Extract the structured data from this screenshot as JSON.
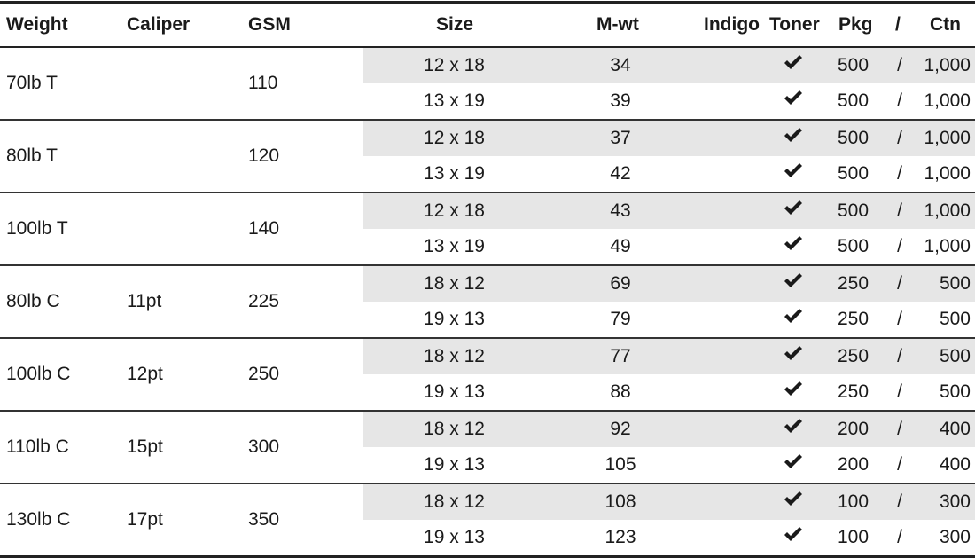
{
  "headers": {
    "weight": "Weight",
    "caliper": "Caliper",
    "gsm": "GSM",
    "size": "Size",
    "mwt": "M-wt",
    "indigo": "Indigo",
    "toner": "Toner",
    "pkg": "Pkg",
    "slash": "/",
    "ctn": "Ctn"
  },
  "groups": [
    {
      "weight": "70lb T",
      "caliper": "",
      "gsm": "110",
      "rows": [
        {
          "size": "12 x 18",
          "mwt": "34",
          "toner": true,
          "pkg": "500",
          "slash": "/",
          "ctn": "1,000"
        },
        {
          "size": "13 x 19",
          "mwt": "39",
          "toner": true,
          "pkg": "500",
          "slash": "/",
          "ctn": "1,000"
        }
      ]
    },
    {
      "weight": "80lb T",
      "caliper": "",
      "gsm": "120",
      "rows": [
        {
          "size": "12 x 18",
          "mwt": "37",
          "toner": true,
          "pkg": "500",
          "slash": "/",
          "ctn": "1,000"
        },
        {
          "size": "13 x 19",
          "mwt": "42",
          "toner": true,
          "pkg": "500",
          "slash": "/",
          "ctn": "1,000"
        }
      ]
    },
    {
      "weight": "100lb T",
      "caliper": "",
      "gsm": "140",
      "rows": [
        {
          "size": "12 x 18",
          "mwt": "43",
          "toner": true,
          "pkg": "500",
          "slash": "/",
          "ctn": "1,000"
        },
        {
          "size": "13 x 19",
          "mwt": "49",
          "toner": true,
          "pkg": "500",
          "slash": "/",
          "ctn": "1,000"
        }
      ]
    },
    {
      "weight": "80lb C",
      "caliper": "11pt",
      "gsm": "225",
      "rows": [
        {
          "size": "18 x 12",
          "mwt": "69",
          "toner": true,
          "pkg": "250",
          "slash": "/",
          "ctn": "500"
        },
        {
          "size": "19 x 13",
          "mwt": "79",
          "toner": true,
          "pkg": "250",
          "slash": "/",
          "ctn": "500"
        }
      ]
    },
    {
      "weight": "100lb C",
      "caliper": "12pt",
      "gsm": "250",
      "rows": [
        {
          "size": "18 x 12",
          "mwt": "77",
          "toner": true,
          "pkg": "250",
          "slash": "/",
          "ctn": "500"
        },
        {
          "size": "19 x 13",
          "mwt": "88",
          "toner": true,
          "pkg": "250",
          "slash": "/",
          "ctn": "500"
        }
      ]
    },
    {
      "weight": "110lb C",
      "caliper": "15pt",
      "gsm": "300",
      "rows": [
        {
          "size": "18 x 12",
          "mwt": "92",
          "toner": true,
          "pkg": "200",
          "slash": "/",
          "ctn": "400"
        },
        {
          "size": "19 x 13",
          "mwt": "105",
          "toner": true,
          "pkg": "200",
          "slash": "/",
          "ctn": "400"
        }
      ]
    },
    {
      "weight": "130lb C",
      "caliper": "17pt",
      "gsm": "350",
      "rows": [
        {
          "size": "18 x 12",
          "mwt": "108",
          "toner": true,
          "pkg": "100",
          "slash": "/",
          "ctn": "300"
        },
        {
          "size": "19 x 13",
          "mwt": "123",
          "toner": true,
          "pkg": "100",
          "slash": "/",
          "ctn": "300"
        }
      ]
    }
  ],
  "colors": {
    "shade": "#e6e6e6",
    "rule": "#222222",
    "text": "#1a1a1a"
  },
  "icons": {
    "toner_mark": "check-icon"
  }
}
